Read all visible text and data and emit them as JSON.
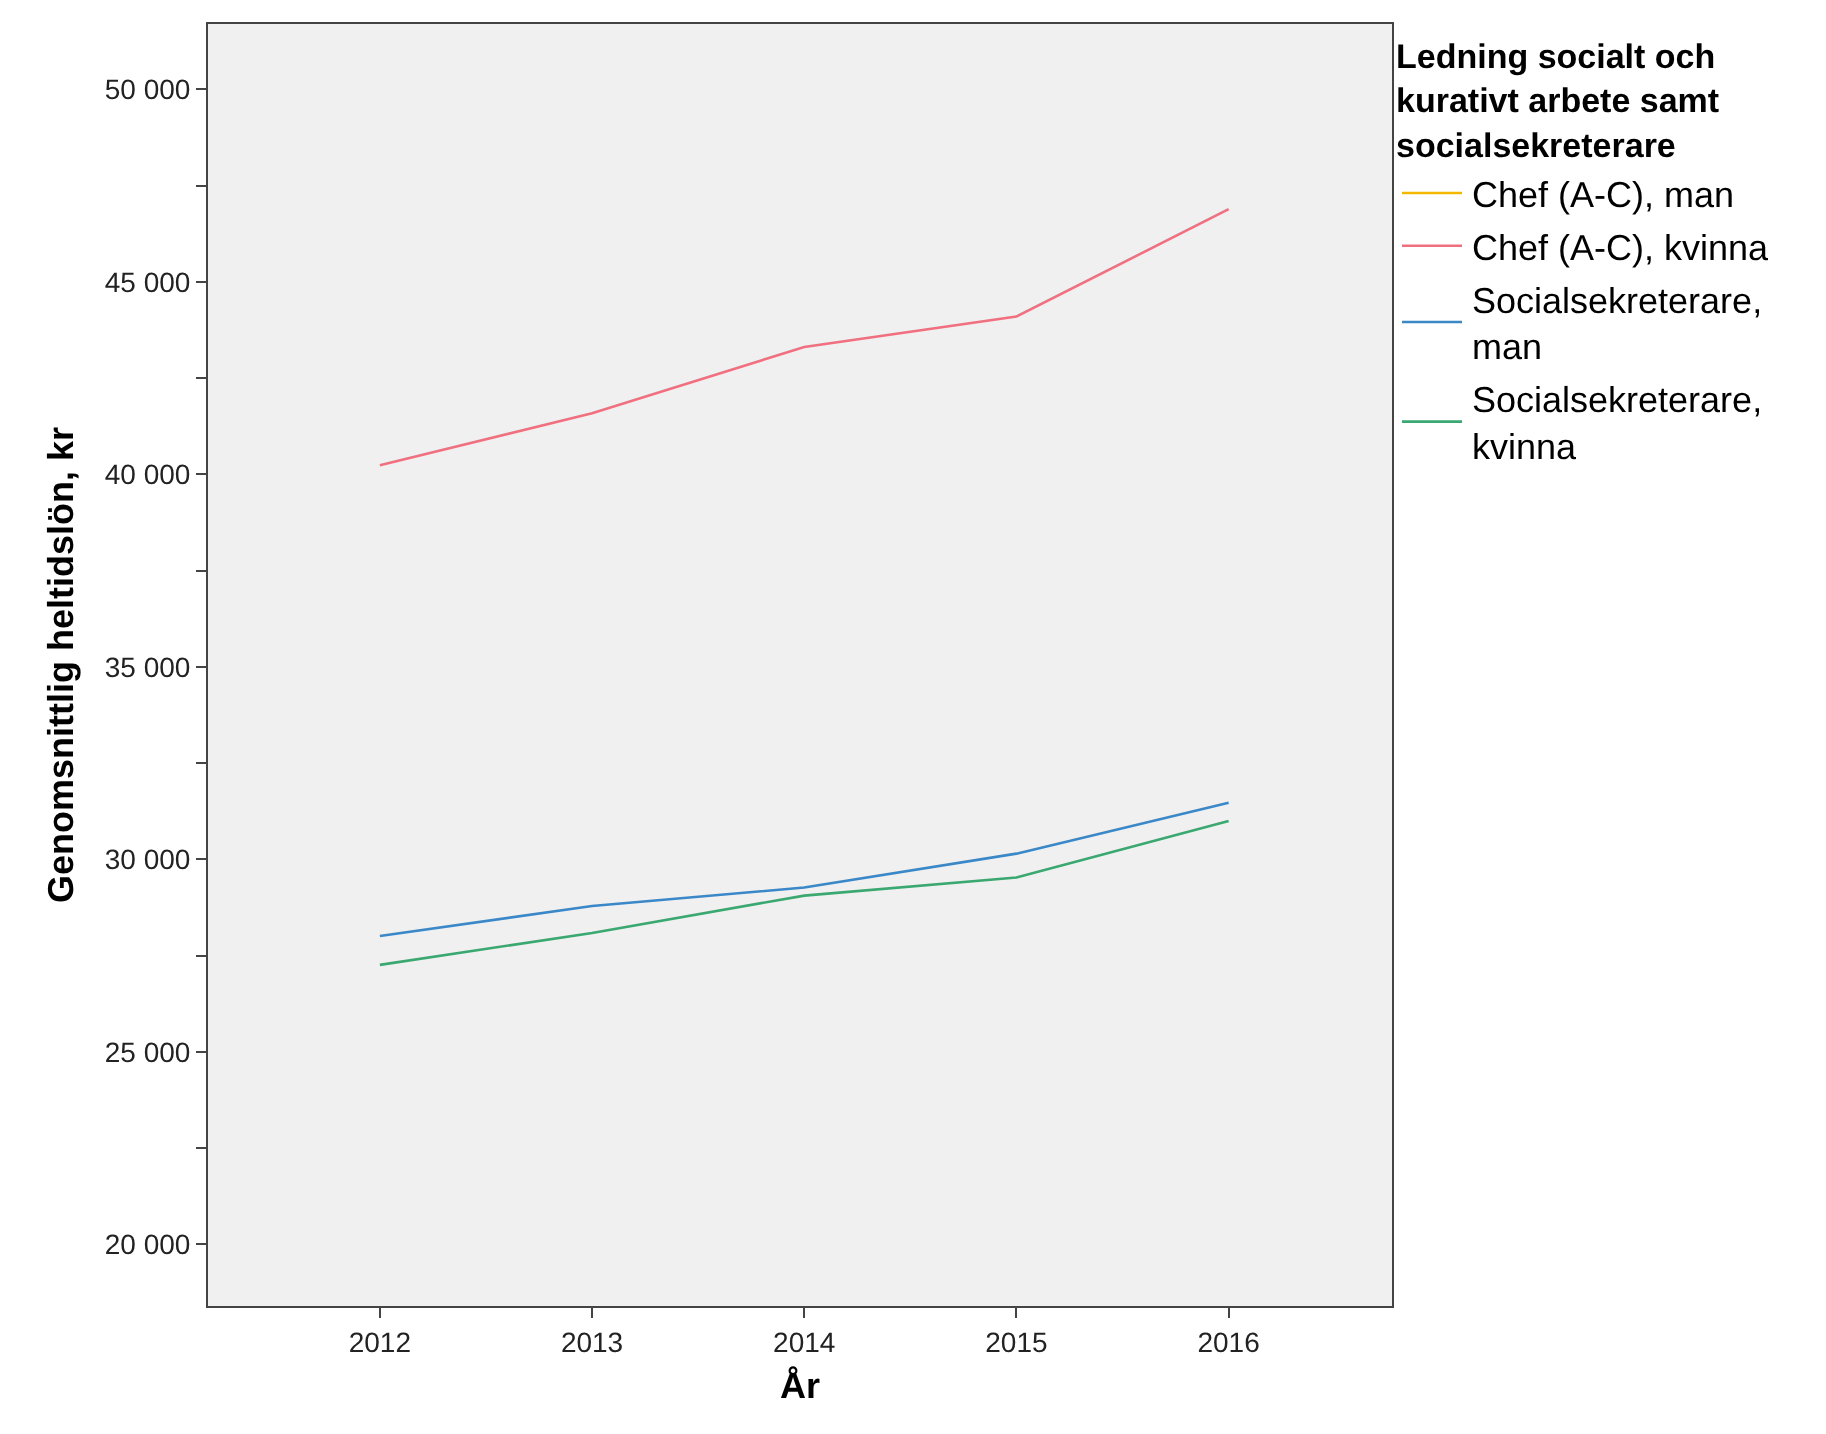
{
  "chart_data": {
    "type": "line",
    "xlabel": "År",
    "ylabel": "Genomsnittlig heltidslön, kr",
    "legend_title": "Ledning socialt och kurativt arbete samt socialsekreterare",
    "x": [
      2012,
      2013,
      2014,
      2015,
      2016
    ],
    "series": [
      {
        "name": "Chef (A-C), man",
        "color": "#f5b800",
        "values": [
          null,
          null,
          null,
          null,
          null
        ]
      },
      {
        "name": "Chef (A-C), kvinna",
        "color": "#f07080",
        "values": [
          40240,
          41590,
          43310,
          44100,
          46890
        ]
      },
      {
        "name": "Socialsekreterare, man",
        "color": "#3a88c8",
        "values": [
          28010,
          28790,
          29270,
          30150,
          31470
        ]
      },
      {
        "name": "Socialsekreterare, kvinna",
        "color": "#3aa870",
        "values": [
          27260,
          28090,
          29060,
          29530,
          31000
        ]
      }
    ],
    "xlim": [
      2011.19,
      2016.77
    ],
    "xticks": [
      2012,
      2013,
      2014,
      2015,
      2016
    ],
    "ylim": [
      18400,
      51700
    ],
    "yticks": [
      {
        "value": 20000,
        "label": "20 000"
      },
      {
        "value": 22500,
        "label": null
      },
      {
        "value": 25000,
        "label": "25 000"
      },
      {
        "value": 27500,
        "label": null
      },
      {
        "value": 30000,
        "label": "30 000"
      },
      {
        "value": 32500,
        "label": null
      },
      {
        "value": 35000,
        "label": "35 000"
      },
      {
        "value": 37500,
        "label": null
      },
      {
        "value": 40000,
        "label": "40 000"
      },
      {
        "value": 42500,
        "label": null
      },
      {
        "value": 45000,
        "label": "45 000"
      },
      {
        "value": 47500,
        "label": null
      },
      {
        "value": 50000,
        "label": "50 000"
      }
    ],
    "legend": "top right",
    "grid": false,
    "marker": "none",
    "line_style": "solid"
  }
}
